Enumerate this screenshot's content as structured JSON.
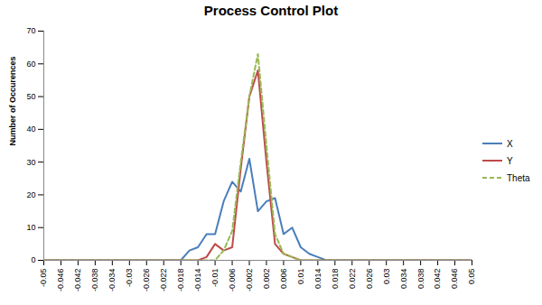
{
  "chart_data": {
    "type": "line",
    "title": "Process Control Plot",
    "y_label": "Number of Occurences",
    "x": [
      -0.05,
      -0.048,
      -0.046,
      -0.044,
      -0.042,
      -0.04,
      -0.038,
      -0.036,
      -0.034,
      -0.032,
      -0.03,
      -0.028,
      -0.026,
      -0.024,
      -0.022,
      -0.02,
      -0.018,
      -0.016,
      -0.014,
      -0.012,
      -0.01,
      -0.008,
      -0.006,
      -0.004,
      -0.002,
      0,
      0.002,
      0.004,
      0.006,
      0.008,
      0.01,
      0.012,
      0.014,
      0.016,
      0.018,
      0.02,
      0.022,
      0.024,
      0.026,
      0.028,
      0.03,
      0.032,
      0.034,
      0.036,
      0.038,
      0.04,
      0.042,
      0.044,
      0.046,
      0.048,
      0.05
    ],
    "series": [
      {
        "name": "X",
        "color": "#4a7ebb",
        "line_style": "solid",
        "values": [
          0,
          0,
          0,
          0,
          0,
          0,
          0,
          0,
          0,
          0,
          0,
          0,
          0,
          0,
          0,
          0,
          0,
          3,
          4,
          8,
          8,
          18,
          24,
          21,
          31,
          15,
          18,
          19,
          8,
          10,
          4,
          2,
          1,
          0,
          0,
          0,
          0,
          0,
          0,
          0,
          0,
          0,
          0,
          0,
          0,
          0,
          0,
          0,
          0,
          0,
          0
        ]
      },
      {
        "name": "Y",
        "color": "#be4b48",
        "line_style": "solid",
        "values": [
          0,
          0,
          0,
          0,
          0,
          0,
          0,
          0,
          0,
          0,
          0,
          0,
          0,
          0,
          0,
          0,
          0,
          0,
          0,
          1,
          5,
          3,
          4,
          28,
          50,
          58,
          30,
          5,
          2,
          1,
          0,
          0,
          0,
          0,
          0,
          0,
          0,
          0,
          0,
          0,
          0,
          0,
          0,
          0,
          0,
          0,
          0,
          0,
          0,
          0,
          0
        ]
      },
      {
        "name": "Theta",
        "color": "#98b954",
        "line_style": "dashed",
        "values": [
          0,
          0,
          0,
          0,
          0,
          0,
          0,
          0,
          0,
          0,
          0,
          0,
          0,
          0,
          0,
          0,
          0,
          0,
          0,
          0,
          0,
          3,
          9,
          30,
          50,
          63,
          35,
          8,
          2,
          1,
          0,
          0,
          0,
          0,
          0,
          0,
          0,
          0,
          0,
          0,
          0,
          0,
          0,
          0,
          0,
          0,
          0,
          0,
          0,
          0,
          0
        ]
      }
    ],
    "xlim": [
      -0.05,
      0.05
    ],
    "xticks": [
      -0.05,
      -0.046,
      -0.042,
      -0.038,
      -0.034,
      -0.03,
      -0.026,
      -0.022,
      -0.018,
      -0.014,
      -0.01,
      -0.006,
      -0.002,
      0.002,
      0.006,
      0.01,
      0.014,
      0.018,
      0.022,
      0.026,
      0.03,
      0.034,
      0.038,
      0.042,
      0.046,
      0.05
    ],
    "ylim": [
      0,
      70
    ],
    "yticks": [
      0,
      10,
      20,
      30,
      40,
      50,
      60,
      70
    ],
    "grid": false,
    "legend": "right"
  }
}
